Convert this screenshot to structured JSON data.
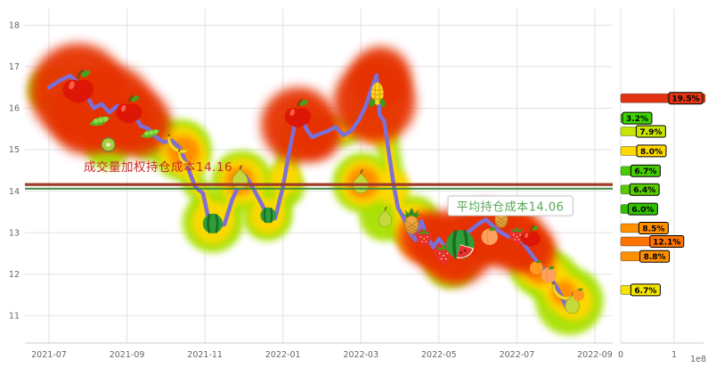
{
  "page": {
    "background": "#ffffff"
  },
  "chart_data": [
    {
      "type": "line",
      "name": "holding-cost-price-chart",
      "x_ticks": [
        "2021-07",
        "2021-09",
        "2021-11",
        "2022-01",
        "2022-03",
        "2022-05",
        "2022-07",
        "2022-09"
      ],
      "y_ticks": [
        11,
        12,
        13,
        14,
        15,
        16,
        17,
        18
      ],
      "x_axis_months_per_tick": 2,
      "line_color": "#7d6fd6",
      "grid_color": "#e2e2e2",
      "tick_color": "#666666",
      "heat_colors": {
        "green": "#a8e000",
        "yellow": "#ffd800",
        "orange": "#ff8a00",
        "red": "#e63000"
      },
      "points": [
        [
          0,
          16.5
        ],
        [
          0.3,
          16.68
        ],
        [
          0.55,
          16.78
        ],
        [
          0.75,
          16.6
        ],
        [
          0.95,
          16.32
        ],
        [
          1.15,
          16.0
        ],
        [
          1.35,
          16.1
        ],
        [
          1.55,
          15.9
        ],
        [
          1.75,
          16.05
        ],
        [
          1.95,
          15.85
        ],
        [
          2.15,
          15.92
        ],
        [
          2.35,
          15.58
        ],
        [
          2.55,
          15.5
        ],
        [
          2.75,
          15.3
        ],
        [
          2.95,
          15.18
        ],
        [
          3.15,
          15.22
        ],
        [
          3.35,
          15.05
        ],
        [
          3.55,
          14.6
        ],
        [
          3.75,
          14.1
        ],
        [
          3.95,
          13.95
        ],
        [
          4.1,
          13.3
        ],
        [
          4.3,
          13.15
        ],
        [
          4.5,
          13.2
        ],
        [
          4.7,
          13.8
        ],
        [
          4.9,
          14.2
        ],
        [
          5.05,
          14.35
        ],
        [
          5.25,
          14.05
        ],
        [
          5.45,
          13.7
        ],
        [
          5.6,
          13.42
        ],
        [
          5.8,
          13.35
        ],
        [
          6.0,
          14.1
        ],
        [
          6.15,
          14.9
        ],
        [
          6.3,
          15.6
        ],
        [
          6.45,
          15.88
        ],
        [
          6.6,
          15.5
        ],
        [
          6.75,
          15.3
        ],
        [
          6.95,
          15.38
        ],
        [
          7.15,
          15.45
        ],
        [
          7.35,
          15.55
        ],
        [
          7.55,
          15.35
        ],
        [
          7.75,
          15.45
        ],
        [
          7.95,
          15.72
        ],
        [
          8.1,
          16.0
        ],
        [
          8.25,
          16.4
        ],
        [
          8.4,
          16.8
        ],
        [
          8.48,
          15.85
        ],
        [
          8.6,
          15.68
        ],
        [
          8.72,
          14.9
        ],
        [
          8.85,
          14.1
        ],
        [
          8.95,
          13.6
        ],
        [
          9.1,
          13.35
        ],
        [
          9.25,
          13.0
        ],
        [
          9.4,
          12.82
        ],
        [
          9.55,
          13.28
        ],
        [
          9.7,
          12.92
        ],
        [
          9.85,
          12.65
        ],
        [
          10.0,
          12.85
        ],
        [
          10.2,
          12.6
        ],
        [
          10.4,
          12.75
        ],
        [
          10.6,
          12.9
        ],
        [
          10.8,
          13.05
        ],
        [
          11.0,
          13.2
        ],
        [
          11.2,
          13.32
        ],
        [
          11.4,
          13.15
        ],
        [
          11.6,
          13.0
        ],
        [
          11.8,
          12.9
        ],
        [
          12.0,
          12.95
        ],
        [
          12.2,
          12.7
        ],
        [
          12.4,
          12.45
        ],
        [
          12.6,
          12.2
        ],
        [
          12.8,
          12.0
        ],
        [
          13.0,
          11.72
        ],
        [
          13.15,
          11.45
        ],
        [
          13.3,
          11.15
        ],
        [
          13.45,
          11.32
        ],
        [
          13.6,
          11.5
        ]
      ],
      "fruits": [
        {
          "type": "apple",
          "x": 0.75,
          "y": 16.5,
          "s": 38
        },
        {
          "type": "peas",
          "x": 1.3,
          "y": 15.68,
          "s": 26
        },
        {
          "type": "kiwi",
          "x": 1.52,
          "y": 15.12,
          "s": 24
        },
        {
          "type": "apple",
          "x": 2.05,
          "y": 15.95,
          "s": 32
        },
        {
          "type": "peas",
          "x": 2.6,
          "y": 15.38,
          "s": 24
        },
        {
          "type": "banana",
          "x": 3.3,
          "y": 15.15,
          "s": 26
        },
        {
          "type": "banana",
          "x": 3.55,
          "y": 14.8,
          "s": 24
        },
        {
          "type": "watermelon",
          "x": 4.2,
          "y": 13.22,
          "s": 28
        },
        {
          "type": "pear",
          "x": 4.9,
          "y": 14.3,
          "s": 26
        },
        {
          "type": "watermelon",
          "x": 5.62,
          "y": 13.42,
          "s": 22
        },
        {
          "type": "apple",
          "x": 6.38,
          "y": 15.85,
          "s": 32
        },
        {
          "type": "pear",
          "x": 8.0,
          "y": 14.2,
          "s": 26
        },
        {
          "type": "corn",
          "x": 8.42,
          "y": 16.35,
          "s": 30
        },
        {
          "type": "pear",
          "x": 8.62,
          "y": 13.35,
          "s": 22
        },
        {
          "type": "pineapple",
          "x": 9.3,
          "y": 13.28,
          "s": 28
        },
        {
          "type": "strawberry",
          "x": 9.62,
          "y": 12.9,
          "s": 26
        },
        {
          "type": "strawberry",
          "x": 10.12,
          "y": 12.5,
          "s": 30
        },
        {
          "type": "watermelon-cut",
          "x": 10.55,
          "y": 12.72,
          "s": 38
        },
        {
          "type": "peach",
          "x": 11.3,
          "y": 12.9,
          "s": 26
        },
        {
          "type": "pineapple",
          "x": 11.6,
          "y": 13.4,
          "s": 26
        },
        {
          "type": "strawberry",
          "x": 12.0,
          "y": 12.95,
          "s": 26
        },
        {
          "type": "apple",
          "x": 12.35,
          "y": 12.9,
          "s": 24
        },
        {
          "type": "tangerine",
          "x": 12.5,
          "y": 12.15,
          "s": 22
        },
        {
          "type": "peach",
          "x": 12.82,
          "y": 11.98,
          "s": 24
        },
        {
          "type": "banana",
          "x": 13.15,
          "y": 11.6,
          "s": 24
        },
        {
          "type": "pear",
          "x": 13.42,
          "y": 11.28,
          "s": 24
        },
        {
          "type": "tangerine",
          "x": 13.58,
          "y": 11.5,
          "s": 20
        }
      ],
      "heat_blobs": {
        "green": [
          [
            0.0,
            16.45,
            24
          ],
          [
            1.5,
            15.1,
            26
          ],
          [
            2.6,
            15.35,
            28
          ],
          [
            3.4,
            15.0,
            34
          ],
          [
            4.2,
            13.25,
            34
          ],
          [
            4.95,
            14.25,
            34
          ],
          [
            5.6,
            13.4,
            28
          ],
          [
            6.0,
            14.1,
            24
          ],
          [
            8.05,
            14.2,
            34
          ],
          [
            8.6,
            13.4,
            28
          ],
          [
            9.35,
            13.25,
            30
          ],
          [
            10.3,
            12.3,
            30
          ],
          [
            12.5,
            12.15,
            30
          ],
          [
            12.9,
            11.9,
            30
          ],
          [
            13.35,
            11.35,
            38
          ]
        ],
        "yellow": [
          [
            3.4,
            15.0,
            26
          ],
          [
            3.6,
            14.75,
            20
          ],
          [
            4.2,
            13.25,
            24
          ],
          [
            4.95,
            14.25,
            26
          ],
          [
            5.6,
            13.4,
            20
          ],
          [
            6.05,
            14.3,
            18
          ],
          [
            8.05,
            14.2,
            26
          ],
          [
            8.45,
            15.6,
            22
          ],
          [
            8.8,
            14.1,
            20
          ],
          [
            9.35,
            13.25,
            22
          ],
          [
            9.6,
            12.9,
            20
          ],
          [
            10.3,
            12.35,
            22
          ],
          [
            11.1,
            13.3,
            20
          ],
          [
            12.5,
            12.15,
            22
          ],
          [
            12.85,
            11.95,
            20
          ],
          [
            13.2,
            11.55,
            22
          ],
          [
            13.45,
            11.35,
            22
          ]
        ],
        "orange": [
          [
            3.45,
            14.95,
            18
          ],
          [
            4.9,
            14.25,
            16
          ],
          [
            8.05,
            14.2,
            18
          ],
          [
            9.5,
            12.9,
            26
          ],
          [
            9.95,
            12.7,
            26
          ],
          [
            10.3,
            12.45,
            26
          ],
          [
            10.7,
            12.85,
            26
          ],
          [
            11.3,
            12.95,
            28
          ],
          [
            11.95,
            12.85,
            28
          ],
          [
            12.35,
            12.55,
            24
          ],
          [
            12.6,
            12.1,
            16
          ],
          [
            13.2,
            11.55,
            14
          ]
        ],
        "red": [
          [
            0.75,
            16.4,
            54
          ],
          [
            0.95,
            15.75,
            40
          ],
          [
            1.6,
            16.0,
            48
          ],
          [
            2.25,
            15.65,
            38
          ],
          [
            6.4,
            15.6,
            42
          ],
          [
            6.85,
            15.35,
            28
          ],
          [
            8.35,
            16.15,
            46
          ],
          [
            8.5,
            16.75,
            34
          ],
          [
            9.75,
            12.85,
            30
          ],
          [
            10.45,
            12.65,
            42
          ],
          [
            11.2,
            13.0,
            34
          ],
          [
            11.9,
            12.85,
            36
          ],
          [
            12.4,
            12.6,
            26
          ]
        ]
      },
      "hlines": [
        {
          "value": 14.16,
          "color": "#9e3a28",
          "width": 3.2,
          "label": "成交量加权持仓成本14.16",
          "label_color": "#cc2a2a"
        },
        {
          "value": 14.06,
          "color": "#3c8a3c",
          "width": 2.0,
          "label": "平均持仓成本14.06",
          "label_color": "#57a657"
        }
      ]
    },
    {
      "type": "bar",
      "name": "volume-profile",
      "orientation": "horizontal",
      "x_ticks": [
        "0",
        "1"
      ],
      "x_exponent_label": "1e8",
      "bars": [
        {
          "label": "19.5%",
          "value_e8": 1.58,
          "price": 16.24,
          "color": "#e23410"
        },
        {
          "label": "3.2%",
          "value_e8": 0.26,
          "price": 15.76,
          "color": "#3ed400"
        },
        {
          "label": "7.9%",
          "value_e8": 0.64,
          "price": 15.44,
          "color": "#c8e400"
        },
        {
          "label": "8.0%",
          "value_e8": 0.65,
          "price": 14.97,
          "color": "#ffd800"
        },
        {
          "label": "6.7%",
          "value_e8": 0.54,
          "price": 14.49,
          "color": "#46cc00"
        },
        {
          "label": "6.4%",
          "value_e8": 0.52,
          "price": 14.04,
          "color": "#58cc00"
        },
        {
          "label": "6.0%",
          "value_e8": 0.49,
          "price": 13.57,
          "color": "#2fc400"
        },
        {
          "label": "8.5%",
          "value_e8": 0.69,
          "price": 13.11,
          "color": "#ff9000"
        },
        {
          "label": "12.1%",
          "value_e8": 0.98,
          "price": 12.79,
          "color": "#ff7300"
        },
        {
          "label": "8.8%",
          "value_e8": 0.71,
          "price": 12.43,
          "color": "#ff9000"
        },
        {
          "label": "6.7%",
          "value_e8": 0.54,
          "price": 11.62,
          "color": "#f5e400"
        }
      ]
    }
  ]
}
